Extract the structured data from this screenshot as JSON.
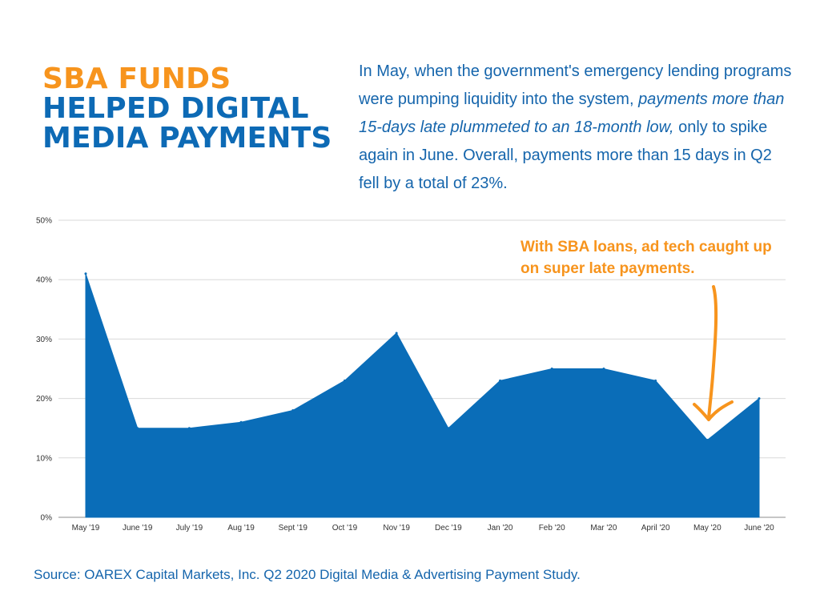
{
  "title": {
    "line1": "SBA FUNDS",
    "line2": "HELPED DIGITAL",
    "line3": "MEDIA PAYMENTS"
  },
  "intro": {
    "part1": "In May, when the government's emergency lending programs were pumping liquidity into the system, ",
    "emphasis": "payments more than 15-days late plummeted to an 18-month low,",
    "part2": " only to spike again in June. Overall, payments more than 15 days in Q2 fell by a total of 23%."
  },
  "callout": "With SBA loans, ad tech caught up on super late payments.",
  "source": "Source: OAREX Capital Markets, Inc. Q2 2020 Digital Media & Advertising Payment Study.",
  "colors": {
    "title_orange": "#f7941d",
    "title_blue": "#0d6ab5",
    "area_fill": "#0a6db8",
    "grid": "#d9d9d9",
    "arrow": "#f7941d"
  },
  "chart_data": {
    "type": "area",
    "categories": [
      "May '19",
      "June '19",
      "July '19",
      "Aug '19",
      "Sept '19",
      "Oct '19",
      "Nov '19",
      "Dec '19",
      "Jan '20",
      "Feb '20",
      "Mar '20",
      "April '20",
      "May '20",
      "June '20"
    ],
    "values": [
      41,
      15,
      15,
      16,
      18,
      23,
      31,
      15,
      23,
      25,
      25,
      23,
      13,
      20
    ],
    "ylim": [
      0,
      50
    ],
    "yticks": [
      0,
      10,
      20,
      30,
      40,
      50
    ],
    "ytick_labels": [
      "0%",
      "10%",
      "20%",
      "30%",
      "40%",
      "50%"
    ],
    "grid": true,
    "annotation": {
      "text": "With SBA loans, ad tech caught up on super late payments.",
      "points_to": "May '20"
    }
  }
}
